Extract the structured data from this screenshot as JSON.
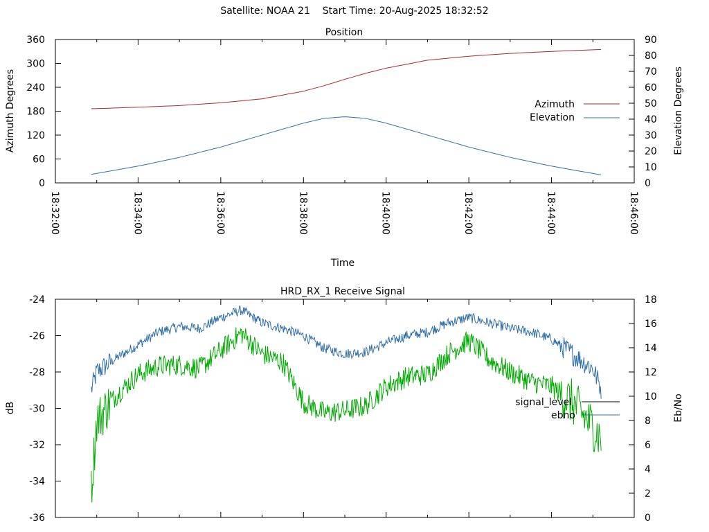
{
  "header": {
    "satellite": "Satellite: NOAA 21",
    "start_time": "Start Time: 20-Aug-2025 18:32:52"
  },
  "chart_data": [
    {
      "type": "line",
      "title": "Position",
      "xlabel": "Time",
      "ylabel": "Azimuth Degrees",
      "y2label": "Elevation Degrees",
      "x_ticks": [
        "18:32:00",
        "18:34:00",
        "18:36:00",
        "18:38:00",
        "18:40:00",
        "18:42:00",
        "18:44:00",
        "18:46:00"
      ],
      "x_range": [
        "18:32:00",
        "18:46:00"
      ],
      "ylim": [
        0,
        360
      ],
      "y_ticks": [
        0,
        60,
        120,
        180,
        240,
        300,
        360
      ],
      "y2lim": [
        0,
        90
      ],
      "y2_ticks": [
        0,
        10,
        20,
        30,
        40,
        50,
        60,
        70,
        80,
        90
      ],
      "grid": false,
      "legend_position": "right",
      "series": [
        {
          "name": "Azimuth",
          "axis": "y1",
          "color": "#a52a2a",
          "x": [
            "18:32:52",
            "18:34:00",
            "18:35:00",
            "18:36:00",
            "18:37:00",
            "18:38:00",
            "18:38:30",
            "18:39:00",
            "18:39:30",
            "18:40:00",
            "18:41:00",
            "18:42:00",
            "18:43:00",
            "18:44:00",
            "18:45:12"
          ],
          "y": [
            186,
            190,
            194,
            201,
            211,
            230,
            244,
            260,
            275,
            288,
            308,
            318,
            325,
            330,
            335
          ]
        },
        {
          "name": "Elevation",
          "axis": "y2",
          "color": "#2f6fa7",
          "x": [
            "18:32:52",
            "18:34:00",
            "18:35:00",
            "18:36:00",
            "18:37:00",
            "18:38:00",
            "18:38:30",
            "18:39:00",
            "18:39:30",
            "18:40:00",
            "18:41:00",
            "18:42:00",
            "18:43:00",
            "18:44:00",
            "18:45:12"
          ],
          "y": [
            5.3,
            10.5,
            16.0,
            22.5,
            30.0,
            37.5,
            40.5,
            41.5,
            40.5,
            37.5,
            30.0,
            22.5,
            16.0,
            10.5,
            5.0
          ]
        }
      ]
    },
    {
      "type": "line",
      "title": "HRD_RX_1 Receive Signal",
      "ylabel": "dB",
      "y2label": "Eb/No",
      "x_range": [
        "18:32:00",
        "18:46:00"
      ],
      "ylim": [
        -36,
        -24
      ],
      "y_ticks": [
        -36,
        -34,
        -32,
        -30,
        -28,
        -26,
        -24
      ],
      "y2lim": [
        0,
        18
      ],
      "y2_ticks": [
        0,
        2,
        4,
        6,
        8,
        10,
        12,
        14,
        16,
        18
      ],
      "grid": false,
      "legend_position": "right",
      "series": [
        {
          "name": "signal_level",
          "axis": "y1",
          "color": "#2f6fa7",
          "x": [
            "18:32:52",
            "18:33:00",
            "18:33:30",
            "18:34:00",
            "18:34:30",
            "18:35:00",
            "18:35:30",
            "18:36:00",
            "18:36:30",
            "18:37:00",
            "18:37:30",
            "18:38:00",
            "18:38:30",
            "18:39:00",
            "18:39:30",
            "18:40:00",
            "18:40:30",
            "18:41:00",
            "18:41:30",
            "18:42:00",
            "18:42:30",
            "18:43:00",
            "18:43:30",
            "18:44:00",
            "18:44:30",
            "18:45:00",
            "18:45:12"
          ],
          "y": [
            -29.0,
            -28.0,
            -27.2,
            -26.5,
            -25.8,
            -25.5,
            -25.6,
            -25.0,
            -24.6,
            -25.3,
            -25.6,
            -26.0,
            -26.7,
            -27.0,
            -26.9,
            -26.4,
            -26.0,
            -25.8,
            -25.3,
            -25.0,
            -25.3,
            -25.6,
            -25.8,
            -26.2,
            -27.0,
            -27.8,
            -28.9
          ]
        },
        {
          "name": "ebno",
          "axis": "y2",
          "color": "#00aa00",
          "x": [
            "18:32:52",
            "18:33:00",
            "18:33:30",
            "18:34:00",
            "18:34:30",
            "18:35:00",
            "18:35:30",
            "18:36:00",
            "18:36:30",
            "18:37:00",
            "18:37:30",
            "18:38:00",
            "18:38:30",
            "18:39:00",
            "18:39:30",
            "18:40:00",
            "18:40:30",
            "18:41:00",
            "18:41:30",
            "18:42:00",
            "18:42:30",
            "18:43:00",
            "18:43:30",
            "18:44:00",
            "18:44:30",
            "18:45:00",
            "18:45:12"
          ],
          "y": [
            2.2,
            8.0,
            10.2,
            11.8,
            12.5,
            12.6,
            12.3,
            13.8,
            15.2,
            13.5,
            12.8,
            9.5,
            8.6,
            8.8,
            9.2,
            10.8,
            11.6,
            11.8,
            13.5,
            14.6,
            13.0,
            12.0,
            11.2,
            10.8,
            9.5,
            7.5,
            6.5
          ]
        }
      ]
    }
  ]
}
